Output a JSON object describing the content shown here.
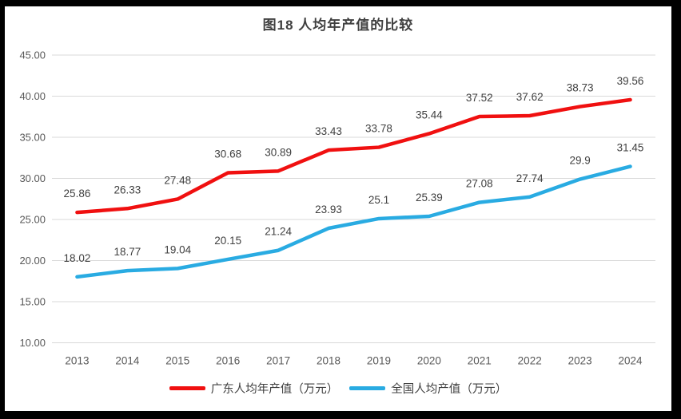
{
  "window": {
    "outer_border_color": "#000000",
    "panel_background": "#ffffff"
  },
  "chart_data": {
    "type": "line",
    "title": "图18 人均年产值的比较",
    "categories": [
      "2013",
      "2014",
      "2015",
      "2016",
      "2017",
      "2018",
      "2019",
      "2020",
      "2021",
      "2022",
      "2023",
      "2024"
    ],
    "series": [
      {
        "name": "广东人均年产值（万元）",
        "color": "#f01010",
        "values": [
          25.86,
          26.33,
          27.48,
          30.68,
          30.89,
          33.43,
          33.78,
          35.44,
          37.52,
          37.62,
          38.73,
          39.56
        ]
      },
      {
        "name": "全国人均产值（万元）",
        "color": "#29abe2",
        "values": [
          18.02,
          18.77,
          19.04,
          20.15,
          21.24,
          23.93,
          25.1,
          25.39,
          27.08,
          27.74,
          29.9,
          31.45
        ]
      }
    ],
    "ylim": [
      10,
      45
    ],
    "ytick_step": 5,
    "ytick_labels": [
      "10.00",
      "15.00",
      "20.00",
      "25.00",
      "30.00",
      "35.00",
      "40.00",
      "45.00"
    ],
    "grid": true,
    "legend_position": "bottom",
    "data_labels": "above"
  },
  "style": {
    "gridline_color": "#d9d9d9",
    "axis_label_color": "#595959",
    "data_label_color": "#404040",
    "title_color": "#404040"
  }
}
